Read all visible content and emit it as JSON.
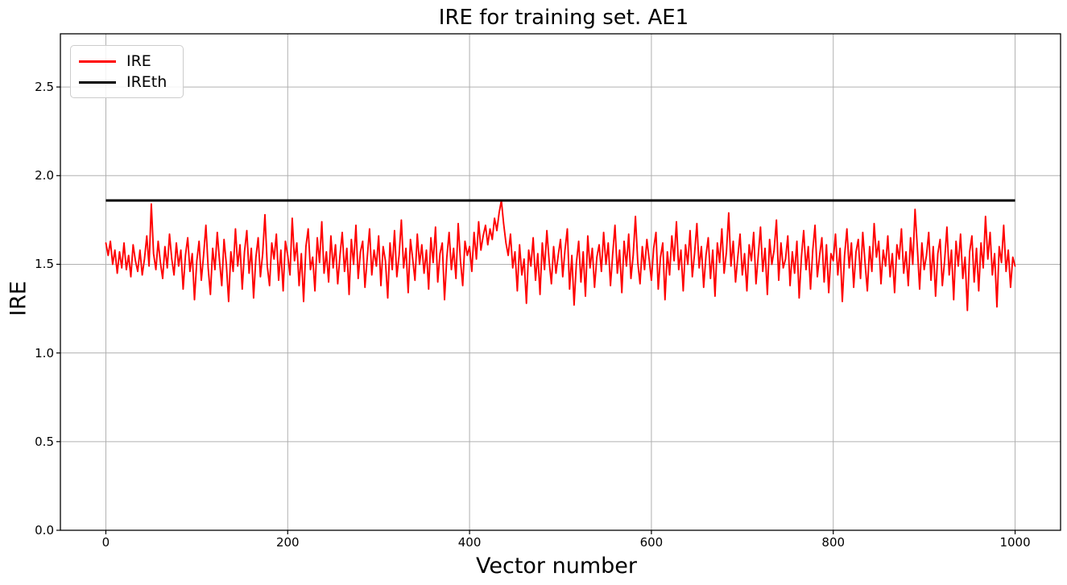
{
  "chart_data": {
    "type": "line",
    "title": "IRE for training set. AE1",
    "xlabel": "Vector number",
    "ylabel": "IRE",
    "xlim": [
      -50,
      1050
    ],
    "ylim": [
      0,
      2.8
    ],
    "xticks": [
      0,
      200,
      400,
      600,
      800,
      1000
    ],
    "xtick_labels": [
      "0",
      "200",
      "400",
      "600",
      "800",
      "1000"
    ],
    "yticks": [
      0.0,
      0.5,
      1.0,
      1.5,
      2.0,
      2.5
    ],
    "ytick_labels": [
      "0.0",
      "0.5",
      "1.0",
      "1.5",
      "2.0",
      "2.5"
    ],
    "grid": true,
    "style": {
      "grid_color": "#b0b0b0",
      "spine_color": "#000000",
      "background": "#ffffff",
      "series_color": "#ff0000",
      "threshold_color": "#000000"
    },
    "legend": {
      "position": "upper left",
      "entries": [
        {
          "label": "IRE",
          "color": "#ff0000"
        },
        {
          "label": "IREth",
          "color": "#000000"
        }
      ]
    },
    "series": [
      {
        "name": "IRE",
        "color": "#ff0000",
        "linewidth": 1.9,
        "x_start": 0,
        "x_step": 2.5,
        "values": [
          1.62,
          1.55,
          1.63,
          1.5,
          1.58,
          1.45,
          1.57,
          1.48,
          1.62,
          1.47,
          1.55,
          1.43,
          1.61,
          1.52,
          1.46,
          1.58,
          1.44,
          1.53,
          1.66,
          1.49,
          1.84,
          1.56,
          1.47,
          1.63,
          1.51,
          1.42,
          1.6,
          1.48,
          1.67,
          1.53,
          1.44,
          1.62,
          1.49,
          1.58,
          1.36,
          1.55,
          1.65,
          1.46,
          1.56,
          1.3,
          1.52,
          1.63,
          1.41,
          1.55,
          1.72,
          1.48,
          1.33,
          1.59,
          1.47,
          1.68,
          1.52,
          1.38,
          1.64,
          1.5,
          1.29,
          1.57,
          1.46,
          1.7,
          1.49,
          1.61,
          1.36,
          1.57,
          1.69,
          1.45,
          1.59,
          1.31,
          1.54,
          1.65,
          1.43,
          1.56,
          1.78,
          1.49,
          1.38,
          1.62,
          1.53,
          1.67,
          1.41,
          1.58,
          1.35,
          1.63,
          1.55,
          1.44,
          1.76,
          1.52,
          1.62,
          1.38,
          1.56,
          1.29,
          1.6,
          1.7,
          1.47,
          1.54,
          1.35,
          1.65,
          1.51,
          1.74,
          1.45,
          1.57,
          1.4,
          1.66,
          1.48,
          1.61,
          1.39,
          1.55,
          1.68,
          1.46,
          1.59,
          1.33,
          1.64,
          1.5,
          1.72,
          1.42,
          1.57,
          1.63,
          1.37,
          1.54,
          1.7,
          1.44,
          1.58,
          1.49,
          1.66,
          1.38,
          1.6,
          1.52,
          1.31,
          1.62,
          1.47,
          1.69,
          1.43,
          1.55,
          1.75,
          1.48,
          1.59,
          1.34,
          1.64,
          1.53,
          1.41,
          1.67,
          1.5,
          1.61,
          1.45,
          1.58,
          1.36,
          1.65,
          1.51,
          1.71,
          1.4,
          1.56,
          1.62,
          1.3,
          1.54,
          1.68,
          1.47,
          1.59,
          1.42,
          1.73,
          1.52,
          1.38,
          1.63,
          1.55,
          1.6,
          1.46,
          1.68,
          1.53,
          1.74,
          1.58,
          1.66,
          1.72,
          1.61,
          1.7,
          1.64,
          1.76,
          1.69,
          1.79,
          1.86,
          1.73,
          1.62,
          1.55,
          1.67,
          1.48,
          1.57,
          1.35,
          1.61,
          1.44,
          1.53,
          1.28,
          1.58,
          1.49,
          1.65,
          1.41,
          1.56,
          1.33,
          1.62,
          1.47,
          1.69,
          1.52,
          1.39,
          1.6,
          1.45,
          1.55,
          1.64,
          1.43,
          1.58,
          1.7,
          1.36,
          1.55,
          1.27,
          1.51,
          1.63,
          1.4,
          1.57,
          1.32,
          1.66,
          1.48,
          1.59,
          1.37,
          1.54,
          1.61,
          1.46,
          1.68,
          1.5,
          1.62,
          1.38,
          1.56,
          1.72,
          1.45,
          1.58,
          1.34,
          1.63,
          1.49,
          1.67,
          1.42,
          1.55,
          1.77,
          1.51,
          1.39,
          1.6,
          1.47,
          1.64,
          1.53,
          1.41,
          1.59,
          1.68,
          1.36,
          1.54,
          1.62,
          1.3,
          1.57,
          1.44,
          1.66,
          1.52,
          1.74,
          1.47,
          1.58,
          1.35,
          1.61,
          1.5,
          1.69,
          1.43,
          1.56,
          1.73,
          1.48,
          1.6,
          1.37,
          1.55,
          1.65,
          1.42,
          1.58,
          1.32,
          1.62,
          1.51,
          1.7,
          1.45,
          1.57,
          1.79,
          1.49,
          1.63,
          1.4,
          1.54,
          1.67,
          1.44,
          1.56,
          1.35,
          1.61,
          1.52,
          1.68,
          1.39,
          1.55,
          1.71,
          1.46,
          1.59,
          1.33,
          1.64,
          1.5,
          1.58,
          1.75,
          1.41,
          1.62,
          1.48,
          1.53,
          1.66,
          1.38,
          1.57,
          1.45,
          1.63,
          1.31,
          1.54,
          1.69,
          1.47,
          1.6,
          1.36,
          1.58,
          1.72,
          1.43,
          1.55,
          1.65,
          1.4,
          1.61,
          1.34,
          1.56,
          1.52,
          1.67,
          1.44,
          1.59,
          1.29,
          1.55,
          1.7,
          1.48,
          1.62,
          1.37,
          1.57,
          1.64,
          1.42,
          1.68,
          1.51,
          1.35,
          1.6,
          1.46,
          1.73,
          1.54,
          1.63,
          1.39,
          1.58,
          1.49,
          1.66,
          1.43,
          1.56,
          1.34,
          1.61,
          1.53,
          1.7,
          1.45,
          1.57,
          1.38,
          1.65,
          1.5,
          1.81,
          1.59,
          1.36,
          1.62,
          1.47,
          1.55,
          1.68,
          1.41,
          1.6,
          1.32,
          1.56,
          1.64,
          1.38,
          1.52,
          1.71,
          1.44,
          1.58,
          1.3,
          1.63,
          1.49,
          1.67,
          1.42,
          1.54,
          1.24,
          1.57,
          1.66,
          1.4,
          1.59,
          1.35,
          1.62,
          1.48,
          1.77,
          1.53,
          1.68,
          1.44,
          1.56,
          1.26,
          1.6,
          1.51,
          1.72,
          1.46,
          1.58,
          1.37,
          1.54,
          1.49
        ]
      },
      {
        "name": "IREth",
        "type": "hline",
        "color": "#000000",
        "linewidth": 3,
        "y": 1.86,
        "x_range": [
          0,
          1000
        ]
      }
    ]
  }
}
